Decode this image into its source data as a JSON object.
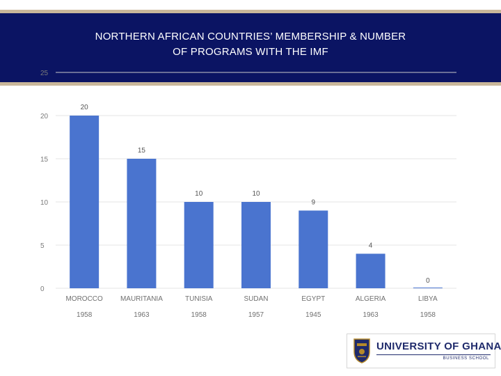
{
  "slide": {
    "title_line1": "NORTHERN AFRICAN COUNTRIES’ MEMBERSHIP & NUMBER",
    "title_line2": "OF PROGRAMS WITH THE IMF"
  },
  "logo": {
    "name": "UNIVERSITY OF GHANA",
    "sub": "BUSINESS SCHOOL"
  },
  "colors": {
    "header_bg": "#0b1463",
    "accent_rule": "#c9b79a",
    "bar": "#4a74cf"
  },
  "chart_data": {
    "type": "bar",
    "title": "NORTHERN AFRICAN COUNTRIES’ MEMBERSHIP & NUMBER OF PROGRAMS WITH THE IMF",
    "categories": [
      "MOROCCO",
      "MAURITANIA",
      "TUNISIA",
      "SUDAN",
      "EGYPT",
      "ALGERIA",
      "LIBYA"
    ],
    "membership_years": [
      "1958",
      "1963",
      "1958",
      "1957",
      "1945",
      "1963",
      "1958"
    ],
    "values": [
      20,
      15,
      10,
      10,
      9,
      4,
      0
    ],
    "data_labels": [
      "20",
      "15",
      "10",
      "10",
      "9",
      "4",
      "0"
    ],
    "y_ticks": [
      "0",
      "5",
      "10",
      "15",
      "20",
      "25"
    ],
    "ylim": [
      0,
      25
    ],
    "grid": true,
    "legend": "none"
  }
}
